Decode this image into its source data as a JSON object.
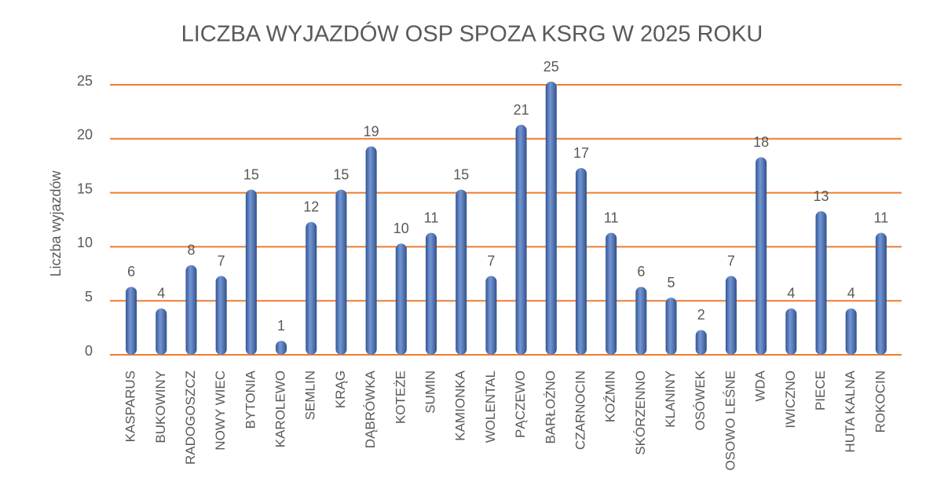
{
  "chart_data": {
    "type": "bar",
    "title": "LICZBA WYJAZDÓW OSP SPOZA KSRG W 2025 ROKU",
    "y_label": "Liczba wyjazdów",
    "categories": [
      "KASPARUS",
      "BUKOWINY",
      "RADOGOSZCZ",
      "NOWY WIEC",
      "BYTONIA",
      "KAROLEWO",
      "SEMLIN",
      "KRĄG",
      "DĄBRÓWKA",
      "KOTEŻE",
      "SUMIN",
      "KAMIONKA",
      "WOLENTAL",
      "PĄCZEWO",
      "BARŁOŻNO",
      "CZARNOCIN",
      "KOŹMIN",
      "SKÓRZENNO",
      "KLANINY",
      "OSÓWEK",
      "OSOWO LEŚNE",
      "WDA",
      "IWICZNO",
      "PIECE",
      "HUTA KALNA",
      "ROKOCIN"
    ],
    "values": [
      6,
      4,
      8,
      7,
      15,
      1,
      12,
      15,
      19,
      10,
      11,
      15,
      7,
      21,
      25,
      17,
      11,
      6,
      5,
      2,
      7,
      18,
      4,
      13,
      4,
      11
    ],
    "color": "#4472c4",
    "grid_color": "#ed7d31",
    "ylim": [
      0,
      25
    ],
    "yticks": [
      0,
      5,
      10,
      15,
      20,
      25
    ],
    "grid": true
  }
}
